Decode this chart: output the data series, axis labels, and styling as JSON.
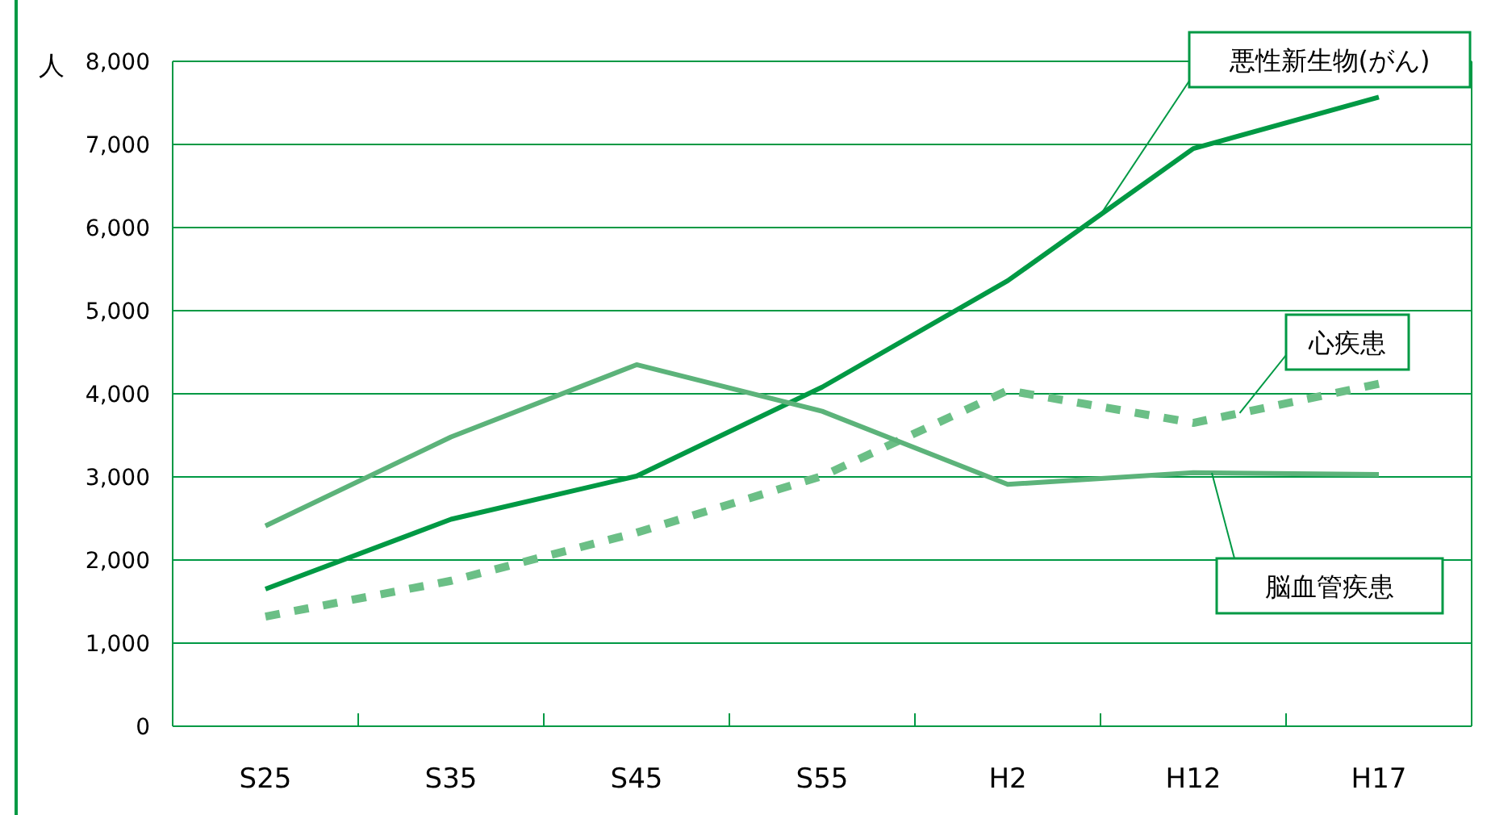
{
  "chart_data": {
    "type": "line",
    "ylabel": "人",
    "categories": [
      "S25",
      "S35",
      "S45",
      "S55",
      "H2",
      "H12",
      "H17"
    ],
    "ylim": [
      0,
      8000
    ],
    "yticks": [
      {
        "value": 0,
        "label": "0"
      },
      {
        "value": 1000,
        "label": "1,000"
      },
      {
        "value": 2000,
        "label": "2,000"
      },
      {
        "value": 3000,
        "label": "3,000"
      },
      {
        "value": 4000,
        "label": "4,000"
      },
      {
        "value": 5000,
        "label": "5,000"
      },
      {
        "value": 6000,
        "label": "6,000"
      },
      {
        "value": 7000,
        "label": "7,000"
      },
      {
        "value": 8000,
        "label": "8,000"
      }
    ],
    "grid": "y",
    "legend": false,
    "marker": "none",
    "series": [
      {
        "name": "悪性新生物(がん)",
        "color": "#009944",
        "line_style": "solid",
        "values": [
          1650,
          2490,
          3010,
          4080,
          5360,
          6950,
          7570
        ]
      },
      {
        "name": "心疾患",
        "color": "#6bbf86",
        "line_style": "dashed",
        "values": [
          1320,
          1750,
          2330,
          3010,
          4040,
          3650,
          4120
        ]
      },
      {
        "name": "脳血管疾患",
        "color": "#5cb37a",
        "line_style": "solid",
        "values": [
          2410,
          3480,
          4350,
          3790,
          2910,
          3050,
          3030
        ]
      }
    ]
  }
}
